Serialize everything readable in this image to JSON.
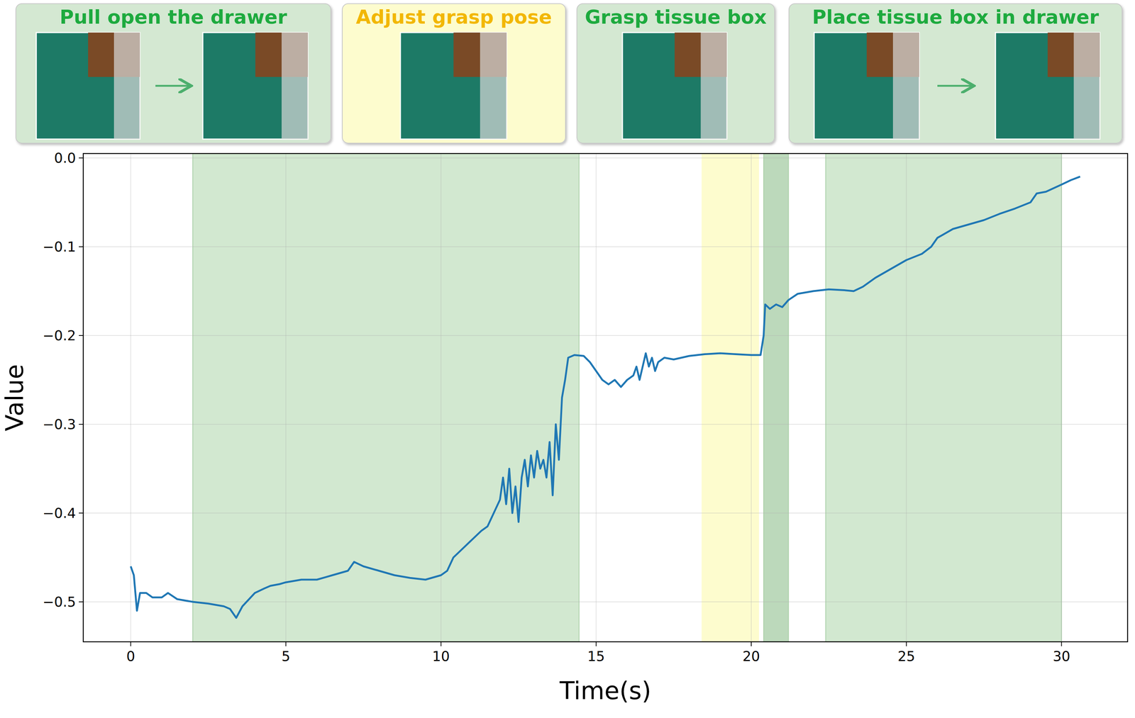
{
  "chart_data": {
    "type": "line",
    "x_label": "Time(s)",
    "y_label": "Value",
    "xlim": [
      -1.53,
      32.13
    ],
    "ylim": [
      -0.545,
      0.005
    ],
    "xticks": [
      0,
      5,
      10,
      15,
      20,
      25,
      30
    ],
    "yticks": [
      {
        "value": -0.5,
        "label": "−0.5"
      },
      {
        "value": -0.4,
        "label": "−0.4"
      },
      {
        "value": -0.3,
        "label": "−0.3"
      },
      {
        "value": -0.2,
        "label": "−0.2"
      },
      {
        "value": -0.1,
        "label": "−0.1"
      },
      {
        "value": 0,
        "label": "0.0"
      }
    ],
    "grid": true,
    "color": "#1f77b4",
    "panels": [
      {
        "title": "Pull open the drawer",
        "color": "#1daa3e",
        "start": 2.0,
        "end": 14.45,
        "region_color": "#d2e8d0"
      },
      {
        "title": "Adjust grasp pose",
        "color": "#f2b705",
        "start": 18.4,
        "end": 20.25,
        "region_color": "#fdfcce"
      },
      {
        "title": "Grasp tissue box",
        "color": "#1daa3e",
        "start": 20.4,
        "end": 21.2,
        "region_color": "#bcd9bb"
      },
      {
        "title": "Place tissue box in drawer",
        "color": "#1daa3e",
        "start": 22.4,
        "end": 30.0,
        "region_color": "#d2e8d0"
      }
    ],
    "x": [
      0,
      0.1,
      0.2,
      0.3,
      0.5,
      0.7,
      1.0,
      1.2,
      1.5,
      2.0,
      2.5,
      3.0,
      3.2,
      3.4,
      3.6,
      4.0,
      4.3,
      4.5,
      4.8,
      5.0,
      5.5,
      6.0,
      6.3,
      6.5,
      7.0,
      7.2,
      7.5,
      8.0,
      8.5,
      9.0,
      9.5,
      10.0,
      10.2,
      10.4,
      10.7,
      11.0,
      11.3,
      11.5,
      11.7,
      11.9,
      12.0,
      12.1,
      12.2,
      12.3,
      12.4,
      12.5,
      12.6,
      12.7,
      12.8,
      12.9,
      13.0,
      13.1,
      13.2,
      13.3,
      13.4,
      13.5,
      13.6,
      13.7,
      13.8,
      13.9,
      14.0,
      14.1,
      14.3,
      14.6,
      14.8,
      15.0,
      15.2,
      15.4,
      15.6,
      15.8,
      16.0,
      16.2,
      16.3,
      16.4,
      16.6,
      16.7,
      16.8,
      16.9,
      17.0,
      17.2,
      17.5,
      18.0,
      18.5,
      19.0,
      19.5,
      20.0,
      20.3,
      20.4,
      20.45,
      20.6,
      20.8,
      21.0,
      21.2,
      21.5,
      22.0,
      22.5,
      23.0,
      23.3,
      23.6,
      24.0,
      24.5,
      25.0,
      25.5,
      25.8,
      26.0,
      26.5,
      27.0,
      27.5,
      28.0,
      28.5,
      29.0,
      29.2,
      29.5,
      30.0,
      30.3,
      30.6
    ],
    "values": [
      -0.46,
      -0.47,
      -0.51,
      -0.49,
      -0.49,
      -0.495,
      -0.495,
      -0.49,
      -0.497,
      -0.5,
      -0.502,
      -0.505,
      -0.508,
      -0.518,
      -0.505,
      -0.49,
      -0.485,
      -0.482,
      -0.48,
      -0.478,
      -0.475,
      -0.475,
      -0.472,
      -0.47,
      -0.465,
      -0.455,
      -0.46,
      -0.465,
      -0.47,
      -0.473,
      -0.475,
      -0.47,
      -0.465,
      -0.45,
      -0.44,
      -0.43,
      -0.42,
      -0.415,
      -0.4,
      -0.385,
      -0.36,
      -0.39,
      -0.35,
      -0.4,
      -0.37,
      -0.41,
      -0.36,
      -0.34,
      -0.37,
      -0.335,
      -0.36,
      -0.33,
      -0.35,
      -0.34,
      -0.36,
      -0.32,
      -0.38,
      -0.3,
      -0.34,
      -0.27,
      -0.25,
      -0.225,
      -0.222,
      -0.223,
      -0.23,
      -0.24,
      -0.25,
      -0.255,
      -0.25,
      -0.258,
      -0.25,
      -0.245,
      -0.235,
      -0.25,
      -0.22,
      -0.235,
      -0.225,
      -0.24,
      -0.23,
      -0.225,
      -0.227,
      -0.223,
      -0.221,
      -0.22,
      -0.221,
      -0.222,
      -0.222,
      -0.2,
      -0.165,
      -0.17,
      -0.165,
      -0.168,
      -0.16,
      -0.153,
      -0.15,
      -0.148,
      -0.149,
      -0.15,
      -0.145,
      -0.135,
      -0.125,
      -0.115,
      -0.108,
      -0.1,
      -0.09,
      -0.08,
      -0.075,
      -0.07,
      -0.063,
      -0.057,
      -0.05,
      -0.04,
      -0.038,
      -0.03,
      -0.025,
      -0.021
    ]
  }
}
